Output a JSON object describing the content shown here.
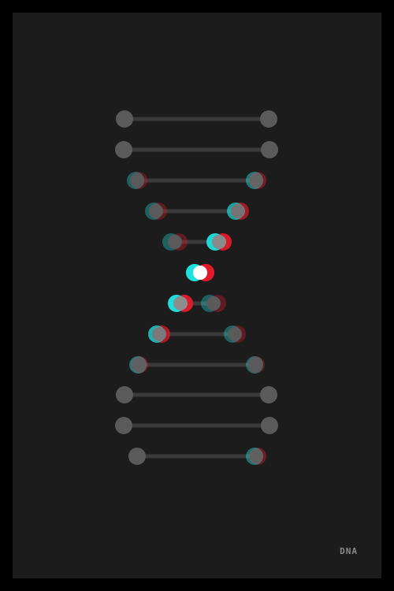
{
  "caption": "DNA",
  "colors": {
    "border": "#000000",
    "background": "#1c1c1c",
    "rung": "#3a3a3a",
    "node": "#5a5a5a",
    "node_light": "#9a9a9a",
    "anaglyph_cyan": "#1fe0e0",
    "anaglyph_red": "#e01a2a"
  },
  "helix": {
    "base_pairs": 12
  }
}
